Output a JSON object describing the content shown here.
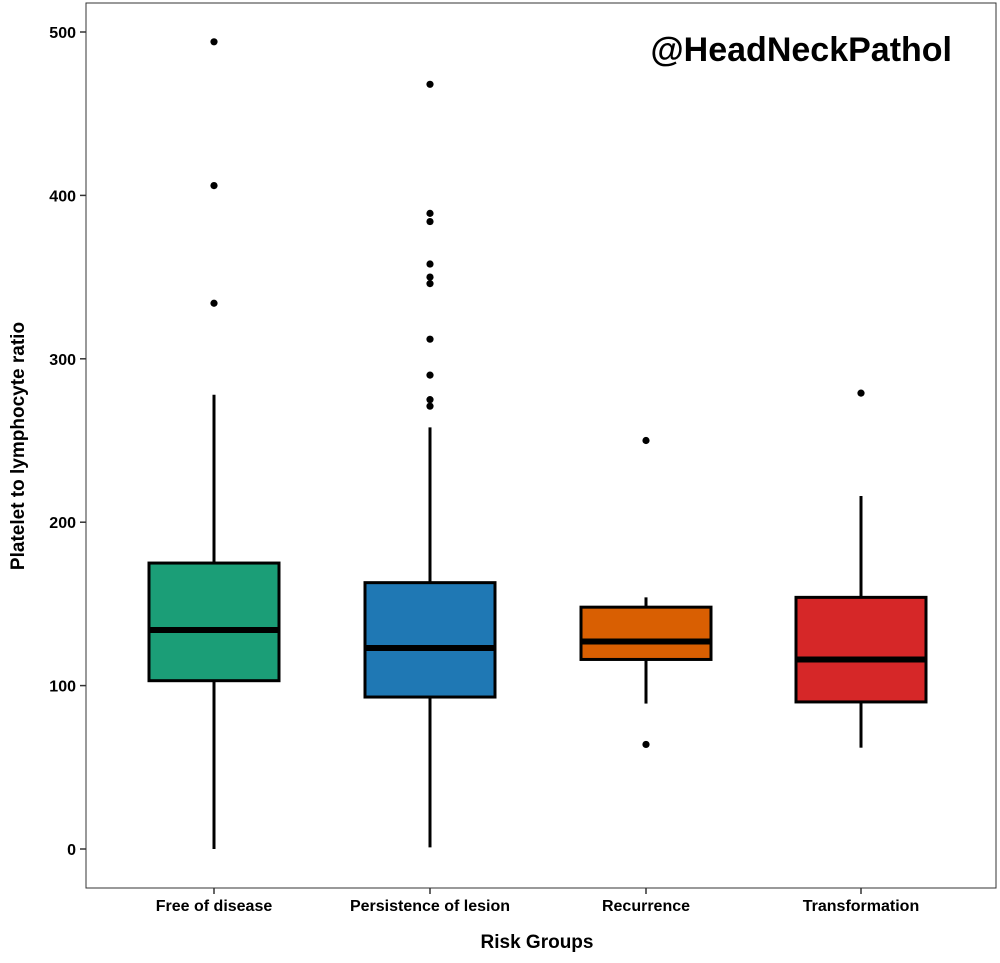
{
  "chart_data": {
    "type": "boxplot",
    "title": "",
    "watermark": "@HeadNeckPathol",
    "xlabel": "Risk Groups",
    "ylabel": "Platelet to lymphocyte ratio",
    "ylim": [
      -25,
      525
    ],
    "yticks": [
      0,
      100,
      200,
      300,
      400,
      500
    ],
    "grid": false,
    "legend": "none",
    "categories": [
      "Free of disease",
      "Persistence of lesion",
      "Recurrence",
      "Transformation"
    ],
    "boxes": [
      {
        "category": "Free of disease",
        "color": "#1b9e77",
        "whisker_low": 0,
        "q1": 103,
        "median": 134,
        "q3": 175,
        "whisker_high": 278,
        "outliers": [
          334,
          406,
          494
        ]
      },
      {
        "category": "Persistence of lesion",
        "color": "#1f78b4",
        "whisker_low": 1,
        "q1": 93,
        "median": 123,
        "q3": 163,
        "whisker_high": 258,
        "outliers": [
          271,
          275,
          290,
          312,
          346,
          350,
          358,
          384,
          389,
          468
        ]
      },
      {
        "category": "Recurrence",
        "color": "#d95f02",
        "whisker_low": 89,
        "q1": 116,
        "median": 127,
        "q3": 148,
        "whisker_high": 154,
        "outliers": [
          64,
          250
        ]
      },
      {
        "category": "Transformation",
        "color": "#d62728",
        "whisker_low": 62,
        "q1": 90,
        "median": 116,
        "q3": 154,
        "whisker_high": 216,
        "outliers": [
          279
        ]
      }
    ]
  }
}
